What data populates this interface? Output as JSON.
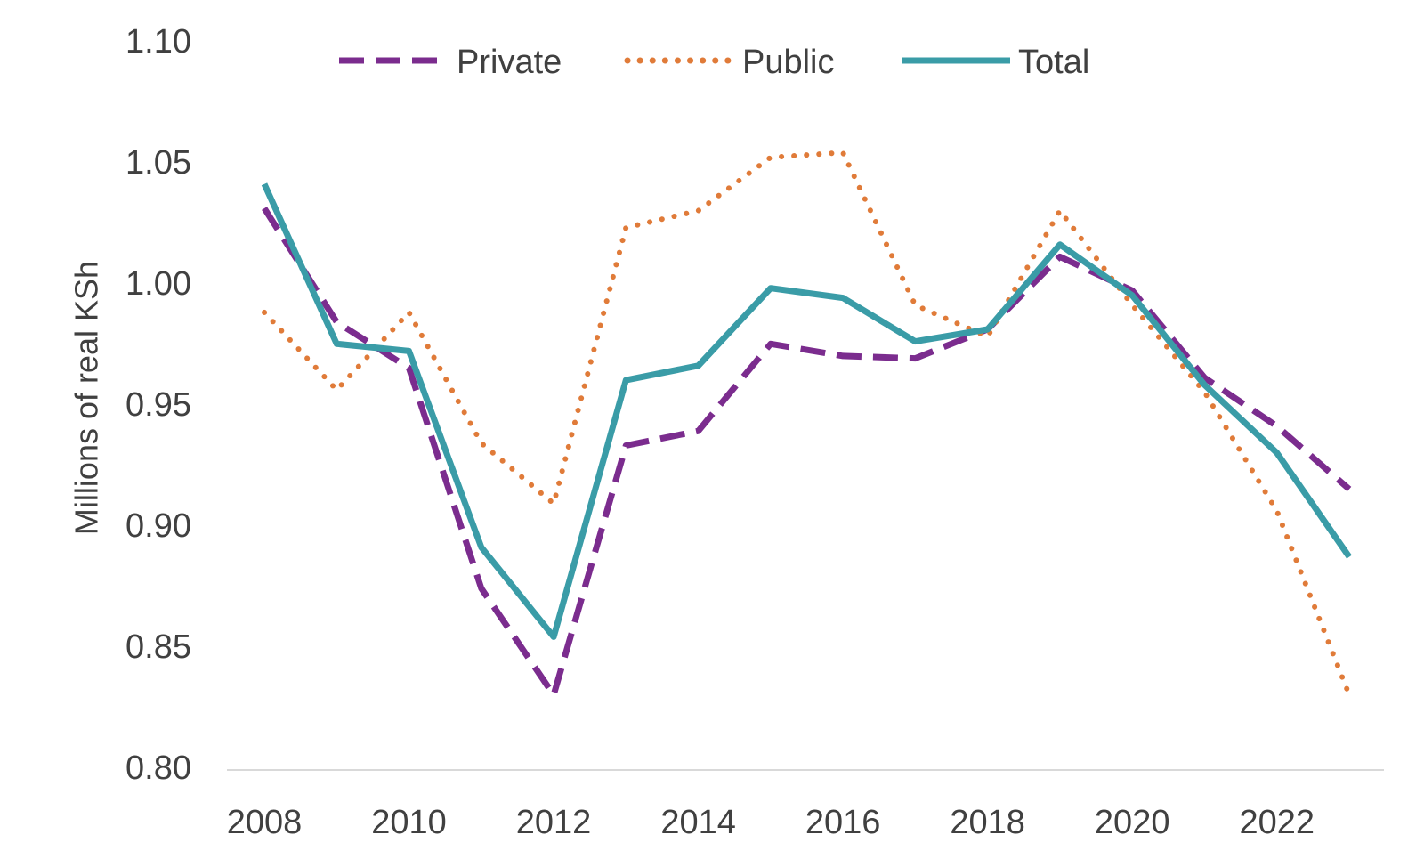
{
  "chart_data": {
    "type": "line",
    "title": "",
    "xlabel": "",
    "ylabel": "Millions of real KSh",
    "ylim": [
      0.8,
      1.1
    ],
    "yticks": [
      "0.80",
      "0.85",
      "0.90",
      "0.95",
      "1.00",
      "1.05",
      "1.10"
    ],
    "xlim": [
      2008,
      2023
    ],
    "xticks": [
      "2008",
      "2010",
      "2012",
      "2014",
      "2016",
      "2018",
      "2020",
      "2022"
    ],
    "grid": false,
    "legend_position": "top",
    "x": [
      2008,
      2009,
      2010,
      2011,
      2012,
      2013,
      2014,
      2015,
      2016,
      2017,
      2018,
      2019,
      2020,
      2021,
      2022,
      2023
    ],
    "series": [
      {
        "name": "Private",
        "color": "#7B2C8E",
        "style": "dashed",
        "values": [
          1.032,
          0.985,
          0.966,
          0.875,
          0.831,
          0.934,
          0.94,
          0.976,
          0.971,
          0.97,
          0.982,
          1.012,
          0.998,
          0.962,
          0.942,
          0.916
        ]
      },
      {
        "name": "Public",
        "color": "#E07B39",
        "style": "dotted",
        "values": [
          0.989,
          0.957,
          0.989,
          0.935,
          0.91,
          1.024,
          1.031,
          1.053,
          1.055,
          0.992,
          0.979,
          1.031,
          0.992,
          0.956,
          0.907,
          0.831
        ]
      },
      {
        "name": "Total",
        "color": "#3A9CA7",
        "style": "solid",
        "values": [
          1.042,
          0.976,
          0.973,
          0.892,
          0.855,
          0.961,
          0.967,
          0.999,
          0.995,
          0.977,
          0.982,
          1.017,
          0.996,
          0.959,
          0.931,
          0.888
        ]
      }
    ]
  }
}
